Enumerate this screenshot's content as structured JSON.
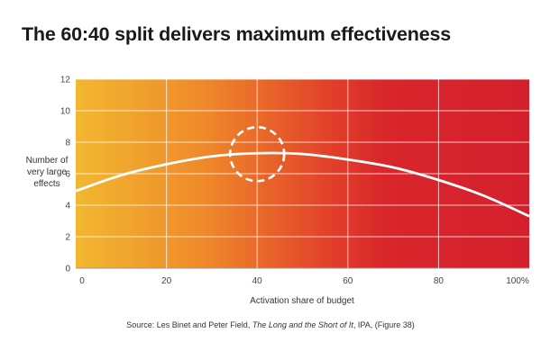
{
  "chart_data": {
    "type": "line",
    "title": "The 60:40 split delivers maximum effectiveness",
    "xlabel": "Activation share of budget",
    "ylabel_lines": [
      "Number of",
      "very large",
      "effects"
    ],
    "xlim": [
      0,
      100
    ],
    "ylim": [
      0,
      12
    ],
    "x_ticks": [
      "0",
      "20",
      "40",
      "60",
      "80",
      "100%"
    ],
    "x_tick_values": [
      0,
      20,
      40,
      60,
      80,
      100
    ],
    "y_ticks": [
      "0",
      "2",
      "4",
      "6",
      "8",
      "10",
      "12"
    ],
    "y_tick_values": [
      0,
      2,
      4,
      6,
      8,
      10,
      12
    ],
    "grid": true,
    "x": [
      0,
      10,
      20,
      30,
      40,
      50,
      60,
      70,
      80,
      90,
      100
    ],
    "values": [
      4.9,
      5.9,
      6.6,
      7.1,
      7.3,
      7.25,
      6.9,
      6.4,
      5.6,
      4.6,
      3.3
    ],
    "highlight_x": 40,
    "background_gradient": [
      "#f2b730",
      "#ef8a2a",
      "#e2432a",
      "#d9262b",
      "#d4202c"
    ],
    "line_color": "#ffffff"
  },
  "source": {
    "prefix": "Source: Les Binet and Peter Field, ",
    "book": "The Long and the Short of It",
    "suffix": ", IPA, (Figure 38)"
  }
}
